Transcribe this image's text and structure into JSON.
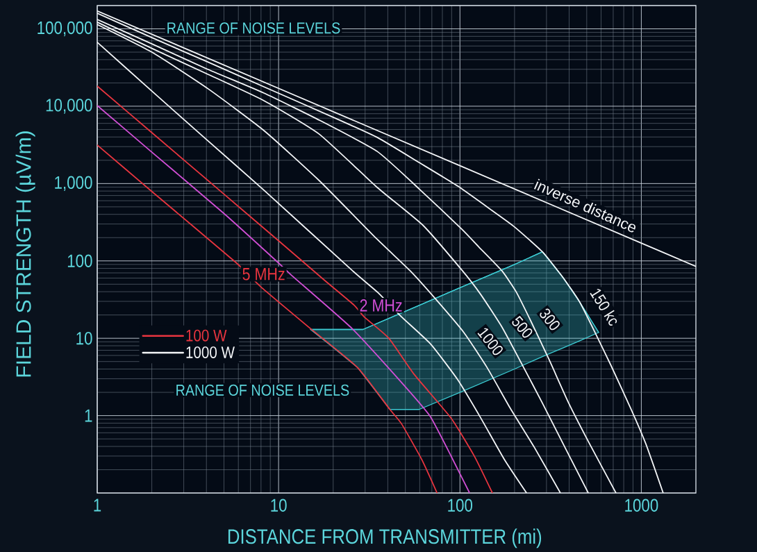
{
  "chart_data": {
    "type": "line",
    "xlabel": "DISTANCE FROM TRANSMITTER (mi)",
    "ylabel": "FIELD STRENGTH (µV/m)",
    "log": "xy",
    "xlim": [
      1,
      2000
    ],
    "ylim": [
      0.1,
      200000
    ],
    "xticks": [
      1,
      10,
      100,
      1000
    ],
    "yticks": [
      1,
      10,
      100,
      {
        "value": 1000,
        "label": "1,000"
      },
      {
        "value": 10000,
        "label": "10,000"
      },
      {
        "value": 100000,
        "label": "100,000"
      }
    ],
    "grid": true,
    "legend": "left",
    "marker": "none",
    "line_style": "solid",
    "series": [
      {
        "name": "100 W",
        "color": "#e8353f",
        "x": [
          1,
          2,
          5.8,
          8,
          14.9,
          27.2,
          41.1,
          47.7,
          61.6,
          74.8
        ],
        "values": [
          3150,
          790,
          96,
          46,
          13.5,
          4.2,
          1.2,
          0.78,
          0.27,
          0.1
        ]
      },
      {
        "color": "#d24fd6",
        "x": [
          1,
          2,
          5,
          9.9,
          11.8,
          25.3,
          48.2,
          68.5,
          90,
          113
        ],
        "values": [
          10200,
          2550,
          410,
          96,
          65,
          13.5,
          2.6,
          0.98,
          0.29,
          0.1
        ]
      },
      {
        "color": "#e8353f",
        "x": [
          1,
          2,
          5,
          10,
          17.8,
          26,
          29.7,
          40.4,
          56,
          89,
          120,
          151
        ],
        "values": [
          18200,
          4550,
          730,
          182,
          57,
          27,
          18.8,
          10.1,
          3.4,
          0.94,
          0.3,
          0.1
        ]
      },
      {
        "name": "1000 W",
        "color": "#f4f6f8",
        "x": [
          1,
          10,
          100,
          1000,
          2000
        ],
        "values": [
          170000,
          17000,
          1700,
          170,
          85
        ]
      },
      {
        "color": "#f4f6f8",
        "x": [
          1,
          2,
          4,
          8.3,
          20,
          35,
          60,
          97,
          150,
          200,
          285,
          370,
          455,
          537,
          676,
          880,
          1060,
          1320
        ],
        "values": [
          159000,
          77000,
          38000,
          17800,
          7200,
          3950,
          1850,
          930,
          450,
          275,
          131,
          61,
          30,
          14,
          4.6,
          1.2,
          0.43,
          0.1
        ]
      },
      {
        "color": "#f4f6f8",
        "x": [
          1,
          2,
          4,
          8.3,
          17,
          35,
          60,
          102,
          127,
          170,
          204,
          245,
          309,
          398,
          519,
          725
        ],
        "values": [
          132000,
          64000,
          30500,
          14800,
          6500,
          2600,
          840,
          259,
          152,
          75,
          40,
          17,
          5.4,
          1.45,
          0.43,
          0.1
        ]
      },
      {
        "color": "#f4f6f8",
        "x": [
          1,
          2,
          4,
          8.3,
          16.7,
          35,
          62.7,
          103,
          130,
          170,
          221,
          285,
          371,
          510
        ],
        "values": [
          122000,
          56000,
          26400,
          11800,
          4380,
          890,
          287,
          75,
          37,
          14.1,
          4.5,
          1.45,
          0.43,
          0.1
        ]
      },
      {
        "color": "#f4f6f8",
        "x": [
          1,
          2,
          4.1,
          8.3,
          16.7,
          35,
          53,
          74,
          105,
          141,
          190,
          257,
          358
        ],
        "values": [
          114000,
          50000,
          16700,
          4850,
          1100,
          190,
          75,
          31.5,
          11.9,
          4.2,
          1.23,
          0.39,
          0.1
        ]
      },
      {
        "color": "#f4f6f8",
        "x": [
          1,
          2,
          4,
          8.3,
          25.5,
          35.4,
          47.3,
          69,
          97,
          130,
          176,
          233
        ],
        "values": [
          67000,
          15700,
          3710,
          822,
          75,
          38.7,
          19.2,
          8.4,
          2.93,
          0.94,
          0.27,
          0.1
        ]
      },
      {
        "color": "#3ccbd3",
        "x": [
          15,
          20,
          27.2,
          29.2,
          41.1,
          59.5,
          100,
          200,
          285,
          370,
          455,
          582
        ],
        "values": [
          13,
          13,
          13,
          13,
          18.3,
          26.6,
          45,
          90,
          131,
          61,
          30,
          11.9
        ],
        "upper": [
          13,
          13,
          13,
          13,
          18.3,
          26.6,
          45,
          90,
          131,
          61,
          30,
          11.9
        ],
        "lower": [
          13,
          7.6,
          4.2,
          3.4,
          1.2,
          1.2,
          2.0,
          4.0,
          5.8,
          7.5,
          9.2,
          11.9
        ]
      }
    ],
    "annotations": [
      "RANGE OF NOISE LEVELS",
      "RANGE OF NOISE LEVELS",
      "5 MHz",
      "2 MHz",
      "inverse distance",
      "150 kc",
      "300",
      "500",
      "1000"
    ]
  }
}
